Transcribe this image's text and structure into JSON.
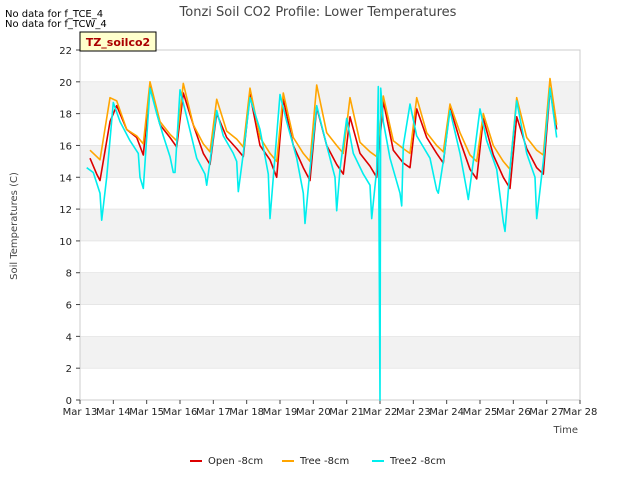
{
  "chart_data": {
    "type": "line",
    "title": "Tonzi Soil CO2 Profile: Lower Temperatures",
    "xlabel": "Time",
    "ylabel": "Soil Temperatures (C)",
    "ylim": [
      0,
      22
    ],
    "yticks": [
      0,
      2,
      4,
      6,
      8,
      10,
      12,
      14,
      16,
      18,
      20,
      22
    ],
    "xlim": [
      13,
      28
    ],
    "xticks": [
      13,
      14,
      15,
      16,
      17,
      18,
      19,
      20,
      21,
      22,
      23,
      24,
      25,
      26,
      27,
      28
    ],
    "xtick_labels": [
      "Mar 13",
      "Mar 14",
      "Mar 15",
      "Mar 16",
      "Mar 17",
      "Mar 18",
      "Mar 19",
      "Mar 20",
      "Mar 21",
      "Mar 22",
      "Mar 23",
      "Mar 24",
      "Mar 25",
      "Mar 26",
      "Mar 27",
      "Mar 28"
    ],
    "grid": "horizontal bands",
    "legend_position": "bottom-center",
    "box_label": "TZ_soilco2",
    "no_data_notes": [
      "No data for f_TCE_4",
      "No data for f_TCW_4"
    ],
    "series": [
      {
        "name": "Open -8cm",
        "color": "#dd0000",
        "x": [
          13.3,
          13.5,
          13.6,
          13.9,
          14.1,
          14.4,
          14.7,
          14.9,
          15.1,
          15.4,
          15.7,
          15.9,
          16.1,
          16.4,
          16.7,
          16.9,
          17.1,
          17.4,
          17.7,
          17.9,
          18.1,
          18.4,
          18.7,
          18.9,
          19.1,
          19.4,
          19.7,
          19.9,
          20.1,
          20.4,
          20.7,
          20.9,
          21.1,
          21.4,
          21.7,
          21.9,
          22.1,
          22.4,
          22.7,
          22.9,
          23.1,
          23.4,
          23.7,
          23.9,
          24.1,
          24.4,
          24.7,
          24.9,
          25.1,
          25.4,
          25.7,
          25.9,
          26.1,
          26.4,
          26.7,
          26.9,
          27.1,
          27.3
        ],
        "y": [
          15.2,
          14.2,
          13.8,
          17.5,
          18.5,
          17.0,
          16.5,
          15.4,
          19.7,
          17.3,
          16.5,
          15.9,
          19.3,
          17.3,
          15.5,
          14.8,
          18.0,
          16.5,
          15.8,
          15.3,
          19.2,
          16.0,
          15.1,
          14.0,
          18.9,
          16.0,
          14.6,
          13.8,
          18.4,
          16.0,
          14.8,
          14.2,
          17.8,
          15.5,
          14.7,
          14.0,
          18.8,
          15.7,
          14.9,
          14.6,
          18.3,
          16.5,
          15.5,
          14.9,
          18.4,
          16.3,
          14.5,
          13.9,
          17.7,
          15.4,
          14.0,
          13.3,
          17.8,
          15.8,
          14.6,
          14.2,
          19.5,
          17.0
        ]
      },
      {
        "name": "Tree -8cm",
        "color": "#ffa500",
        "x": [
          13.3,
          13.5,
          13.6,
          13.9,
          14.1,
          14.4,
          14.7,
          14.9,
          15.1,
          15.4,
          15.7,
          15.9,
          16.1,
          16.4,
          16.7,
          16.9,
          17.1,
          17.4,
          17.7,
          17.9,
          18.1,
          18.4,
          18.7,
          18.9,
          19.1,
          19.4,
          19.7,
          19.9,
          20.1,
          20.4,
          20.7,
          20.9,
          21.1,
          21.4,
          21.7,
          21.9,
          22.1,
          22.4,
          22.7,
          22.9,
          23.1,
          23.4,
          23.7,
          23.9,
          24.1,
          24.4,
          24.7,
          24.9,
          25.1,
          25.4,
          25.7,
          25.9,
          26.1,
          26.4,
          26.7,
          26.9,
          27.1,
          27.3
        ],
        "y": [
          15.7,
          15.3,
          15.1,
          19.0,
          18.8,
          17.0,
          16.6,
          16.1,
          20.0,
          17.5,
          16.7,
          16.3,
          19.9,
          17.3,
          16.1,
          15.6,
          18.9,
          16.9,
          16.4,
          15.9,
          19.6,
          16.5,
          15.5,
          15.0,
          19.3,
          16.5,
          15.5,
          15.0,
          19.8,
          16.8,
          16.0,
          15.5,
          19.0,
          16.2,
          15.6,
          15.3,
          19.1,
          16.3,
          15.8,
          15.5,
          19.0,
          16.8,
          16.0,
          15.6,
          18.6,
          16.8,
          15.4,
          15.0,
          18.0,
          16.0,
          15.0,
          14.5,
          19.0,
          16.5,
          15.7,
          15.4,
          20.2,
          17.3
        ]
      },
      {
        "name": "Tree2 -8cm",
        "color": "#00eeee",
        "x": [
          13.2,
          13.4,
          13.6,
          13.65,
          13.8,
          14.0,
          14.2,
          14.5,
          14.75,
          14.8,
          14.9,
          15.1,
          15.3,
          15.5,
          15.7,
          15.8,
          15.85,
          16.0,
          16.2,
          16.5,
          16.75,
          16.8,
          16.9,
          17.1,
          17.3,
          17.6,
          17.7,
          17.75,
          17.9,
          18.1,
          18.4,
          18.65,
          18.7,
          18.8,
          19.0,
          19.2,
          19.5,
          19.7,
          19.75,
          19.9,
          20.1,
          20.4,
          20.65,
          20.7,
          20.8,
          21.0,
          21.2,
          21.5,
          21.7,
          21.75,
          21.9,
          21.95,
          22.0,
          22.02,
          22.1,
          22.3,
          22.6,
          22.65,
          22.7,
          22.9,
          23.1,
          23.5,
          23.7,
          23.75,
          23.9,
          24.1,
          24.4,
          24.6,
          24.65,
          24.8,
          25.0,
          25.2,
          25.5,
          25.7,
          25.75,
          25.9,
          26.1,
          26.4,
          26.65,
          26.7,
          26.9,
          27.1,
          27.3
        ],
        "y": [
          14.6,
          14.3,
          13.0,
          11.3,
          14.0,
          18.7,
          17.5,
          16.3,
          15.5,
          14.0,
          13.3,
          19.6,
          18.0,
          16.6,
          15.3,
          14.3,
          14.3,
          19.5,
          17.8,
          15.2,
          14.2,
          13.5,
          15.0,
          18.2,
          16.6,
          15.5,
          15.0,
          13.1,
          15.5,
          19.0,
          17.0,
          14.2,
          11.4,
          14.0,
          19.2,
          17.5,
          15.2,
          13.0,
          11.1,
          14.5,
          18.5,
          16.0,
          14.0,
          11.9,
          14.5,
          17.7,
          15.5,
          14.2,
          13.5,
          11.4,
          14.5,
          19.7,
          0.0,
          19.6,
          17.5,
          15.2,
          13.0,
          12.2,
          16.0,
          18.6,
          16.6,
          15.2,
          13.2,
          13.0,
          15.0,
          18.2,
          15.5,
          13.2,
          12.6,
          15.0,
          18.3,
          16.3,
          14.5,
          11.2,
          10.6,
          14.5,
          18.8,
          15.5,
          14.0,
          11.4,
          15.0,
          19.6,
          16.5
        ]
      }
    ]
  }
}
